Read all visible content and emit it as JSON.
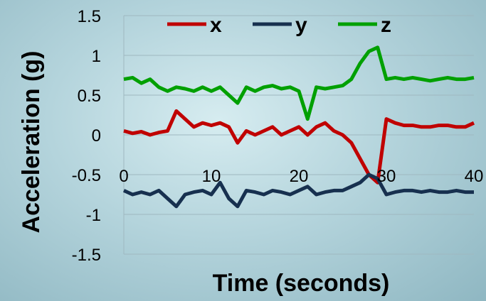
{
  "chart_data": {
    "type": "line",
    "xlabel": "Time (seconds)",
    "ylabel": "Acceleration (g)",
    "xlim": [
      0,
      40
    ],
    "ylim": [
      -1.5,
      1.5
    ],
    "x_ticks": [
      "0",
      "10",
      "20",
      "30",
      "40"
    ],
    "y_ticks": [
      "1.5",
      "1",
      "0.5",
      "0",
      "-0.5",
      "-1",
      "-1.5"
    ],
    "grid": "horizontal",
    "legend_position": "top",
    "x": [
      0,
      1,
      2,
      3,
      4,
      5,
      6,
      7,
      8,
      9,
      10,
      11,
      12,
      13,
      14,
      15,
      16,
      17,
      18,
      19,
      20,
      21,
      22,
      23,
      24,
      25,
      26,
      27,
      28,
      29,
      30,
      31,
      32,
      33,
      34,
      35,
      36,
      37,
      38,
      39,
      40
    ],
    "series": [
      {
        "name": "x",
        "color": "#c00000",
        "values": [
          0.05,
          0.02,
          0.04,
          0.0,
          0.03,
          0.05,
          0.3,
          0.2,
          0.1,
          0.15,
          0.12,
          0.15,
          0.1,
          -0.1,
          0.05,
          0.0,
          0.05,
          0.1,
          0.0,
          0.05,
          0.1,
          0.0,
          0.1,
          0.15,
          0.05,
          0.0,
          -0.1,
          -0.3,
          -0.5,
          -0.6,
          0.2,
          0.15,
          0.12,
          0.12,
          0.1,
          0.1,
          0.12,
          0.12,
          0.1,
          0.1,
          0.15
        ]
      },
      {
        "name": "y",
        "color": "#17304f",
        "values": [
          -0.7,
          -0.75,
          -0.72,
          -0.75,
          -0.7,
          -0.8,
          -0.9,
          -0.75,
          -0.72,
          -0.7,
          -0.75,
          -0.6,
          -0.8,
          -0.9,
          -0.7,
          -0.72,
          -0.75,
          -0.7,
          -0.72,
          -0.75,
          -0.7,
          -0.65,
          -0.75,
          -0.72,
          -0.7,
          -0.7,
          -0.65,
          -0.6,
          -0.5,
          -0.55,
          -0.75,
          -0.72,
          -0.7,
          -0.7,
          -0.72,
          -0.7,
          -0.72,
          -0.72,
          -0.7,
          -0.72,
          -0.72
        ]
      },
      {
        "name": "z",
        "color": "#00a000",
        "values": [
          0.7,
          0.72,
          0.65,
          0.7,
          0.6,
          0.55,
          0.6,
          0.58,
          0.55,
          0.6,
          0.55,
          0.6,
          0.5,
          0.4,
          0.6,
          0.55,
          0.6,
          0.62,
          0.58,
          0.6,
          0.55,
          0.2,
          0.6,
          0.58,
          0.6,
          0.62,
          0.7,
          0.9,
          1.05,
          1.1,
          0.7,
          0.72,
          0.7,
          0.72,
          0.7,
          0.68,
          0.7,
          0.72,
          0.7,
          0.7,
          0.72
        ]
      }
    ]
  }
}
